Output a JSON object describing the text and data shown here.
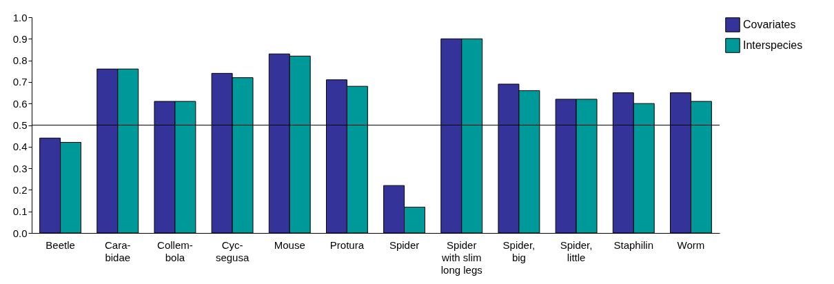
{
  "chart_data": {
    "type": "bar",
    "categories": [
      "Beetle",
      "Cara-\nbidae",
      "Collem-\nbola",
      "Cyc-\nsegusa",
      "Mouse",
      "Protura",
      "Spider",
      "Spider\nwith slim\nlong legs",
      "Spider,\nbig",
      "Spider,\nlittle",
      "Staphilin",
      "Worm"
    ],
    "series": [
      {
        "name": "Covariates",
        "color": "#333399",
        "values": [
          0.44,
          0.76,
          0.61,
          0.74,
          0.83,
          0.71,
          0.22,
          0.9,
          0.69,
          0.62,
          0.65,
          0.65
        ]
      },
      {
        "name": "Interspecies",
        "color": "#009999",
        "values": [
          0.42,
          0.76,
          0.61,
          0.72,
          0.82,
          0.68,
          0.12,
          0.9,
          0.66,
          0.62,
          0.6,
          0.61
        ]
      }
    ],
    "ylim": [
      0,
      1
    ],
    "yticks": [
      {
        "value": 0,
        "label": "0.0"
      },
      0.1,
      0.2,
      0.3,
      0.4,
      0.5,
      0.6,
      0.7,
      0.8,
      0.9,
      {
        "value": 1,
        "label": "1.0"
      }
    ],
    "ref_lines": [
      {
        "axis": "y",
        "value": 0.5,
        "color": "#000000"
      }
    ],
    "grid": false,
    "legend": "top right"
  }
}
